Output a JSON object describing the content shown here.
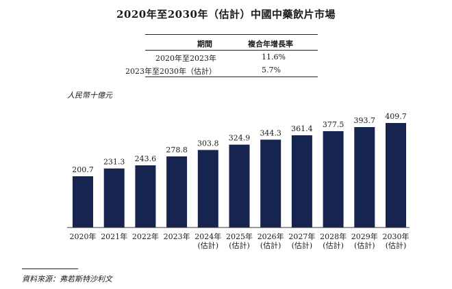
{
  "title": "2020年至2030年（估計）中國中藥飲片市場",
  "cagr_table": {
    "headers": [
      "期間",
      "複合年增長率"
    ],
    "rows": [
      {
        "period": "2020年至2023年",
        "rate": "11.6%"
      },
      {
        "period": "2023年至2030年（估計）",
        "rate": "5.7%"
      }
    ]
  },
  "unit_label": "人民幣十億元",
  "source": "資料來源：弗若斯特沙利文",
  "colors": {
    "bar": "#17244f",
    "axis": "#333333",
    "text": "#1a1a1a"
  },
  "chart_data": {
    "type": "bar",
    "categories": [
      "2020年",
      "2021年",
      "2022年",
      "2023年",
      "2024年\n(估計)",
      "2025年\n(估計)",
      "2026年\n(估計)",
      "2027年\n(估計)",
      "2028年\n(估計)",
      "2029年\n(估計)",
      "2030年\n(估計)"
    ],
    "values": [
      200.7,
      231.3,
      243.6,
      278.8,
      303.8,
      324.9,
      344.3,
      361.4,
      377.5,
      393.7,
      409.7
    ],
    "value_labels": [
      "200.7",
      "231.3",
      "243.6",
      "278.8",
      "303.8",
      "324.9",
      "344.3",
      "361.4",
      "377.5",
      "393.7",
      "409.7"
    ],
    "ylabel": "人民幣十億元",
    "ylim": [
      0,
      409.7
    ],
    "grid": false,
    "legend": "none"
  }
}
